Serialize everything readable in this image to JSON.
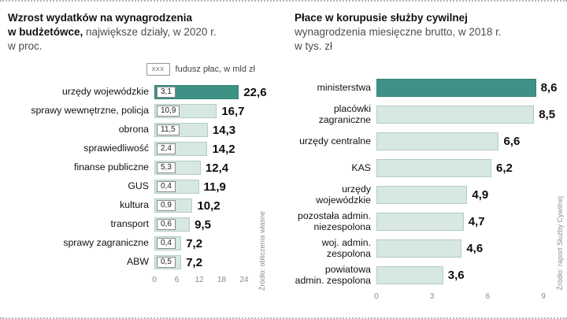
{
  "chart_data": [
    {
      "type": "bar",
      "title": {
        "bold_line1": "Wzrost wydatków na wynagrodzenia",
        "bold_line2": "w budżetówce,",
        "sub_inline": "największe działy, w 2020 r.",
        "sub_line": "w proc."
      },
      "legend": {
        "box_label": "xxx",
        "text": "fudusz płac, w mld zł"
      },
      "source": "Źródło: obliczenia własne",
      "xlabel": "",
      "ylabel": "",
      "xlim": [
        0,
        24
      ],
      "ticks": [
        "0",
        "6",
        "12",
        "18",
        "24"
      ],
      "colors": {
        "highlight": "#3d9285",
        "bar": "#d6e8df"
      },
      "rows": [
        {
          "label": "urzędy wojewódzkie",
          "fund": "3,1",
          "value": 22.6,
          "display": "22,6",
          "highlight": true
        },
        {
          "label": "sprawy wewnętrzne, policja",
          "fund": "10,9",
          "value": 16.7,
          "display": "16,7"
        },
        {
          "label": "obrona",
          "fund": "11,5",
          "value": 14.3,
          "display": "14,3"
        },
        {
          "label": "sprawiedliwość",
          "fund": "2,4",
          "value": 14.2,
          "display": "14,2"
        },
        {
          "label": "finanse publiczne",
          "fund": "5,3",
          "value": 12.4,
          "display": "12,4"
        },
        {
          "label": "GUS",
          "fund": "0,4",
          "value": 11.9,
          "display": "11,9"
        },
        {
          "label": "kultura",
          "fund": "0,9",
          "value": 10.2,
          "display": "10,2"
        },
        {
          "label": "transport",
          "fund": "0,6",
          "value": 9.5,
          "display": "9,5"
        },
        {
          "label": "sprawy zagraniczne",
          "fund": "0,4",
          "value": 7.2,
          "display": "7,2"
        },
        {
          "label": "ABW",
          "fund": "0,5",
          "value": 7.2,
          "display": "7,2"
        }
      ]
    },
    {
      "type": "bar",
      "title": {
        "bold_line1": "Płace w korupusie służby cywilnej",
        "sub_inline": "wynagrodzenia miesięczne brutto, w 2018 r.",
        "sub_line": "w tys. zł"
      },
      "source": "Źródło: raport Służby Cywilnej",
      "xlabel": "",
      "ylabel": "",
      "xlim": [
        0,
        9
      ],
      "ticks": [
        "0",
        "3",
        "6",
        "9"
      ],
      "colors": {
        "highlight": "#3d9285",
        "bar": "#d6e8df"
      },
      "rows": [
        {
          "label": "ministerstwa",
          "value": 8.6,
          "display": "8,6",
          "highlight": true
        },
        {
          "label": "placówki zagraniczne",
          "value": 8.5,
          "display": "8,5"
        },
        {
          "label": "urzędy centralne",
          "value": 6.6,
          "display": "6,6"
        },
        {
          "label": "KAS",
          "value": 6.2,
          "display": "6,2"
        },
        {
          "label": "urzędy wojewódzkie",
          "value": 4.9,
          "display": "4,9"
        },
        {
          "label": "pozostała admin. niezespolona",
          "value": 4.7,
          "display": "4,7"
        },
        {
          "label": "woj. admin. zespolona",
          "value": 4.6,
          "display": "4,6"
        },
        {
          "label": "powiatowa admin. zespolona",
          "value": 3.6,
          "display": "3,6"
        }
      ]
    }
  ]
}
